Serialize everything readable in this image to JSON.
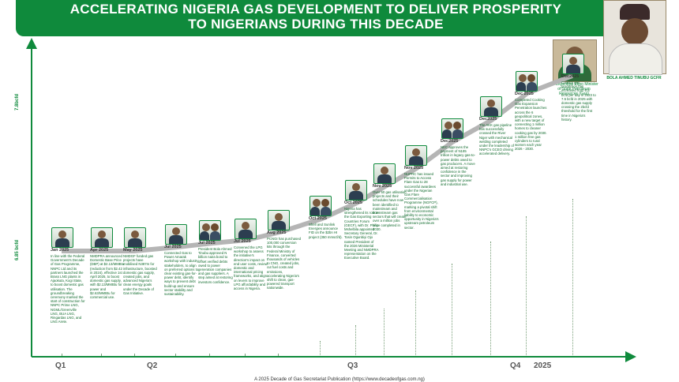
{
  "header": {
    "line1": "ACCELERATING NIGERIA GAS DEVELOPMENT TO DELIVER PROSPERITY",
    "line2": "TO NIGERIANS DURING THIS DECADE"
  },
  "credits": {
    "left": "Dr. Ekperikpe Ekpo Minister of State Petroleum Resources (Gas)",
    "right": "BOLA AHMED TINUBU GCFR"
  },
  "y_axis": {
    "top": "7.8bcfd",
    "bottom": "6.85 bcfd"
  },
  "milestones": [
    {
      "date": "Jan 2025",
      "text": "In line with the Federal Government's Decade of Gas Programme, NNPC Ltd and its partners launched the Brass LNG plants in Ajaokuta, Kogi State, to boost domestic gas utilisation. The groundbreaking ceremony marked the start of construction for NNPC Prime LNG, NGML/Greenville LNG, BUA LNG, Ringardas LNG, and LNG Arete."
    },
    {
      "date": "Apr 2025",
      "text": "NMDPRA announced Domestic Base Price (DBP) at $2.13/MMBtu (reduction from $2.42 in 2024), effective 1st April 2025, to boost domestic gas supply, with $2.13/MMBtu for power and $2.63/MMBtu for commercial use."
    },
    {
      "date": "May 2025",
      "text": "NMDGF funded gas projects have mobilised N387m for infrastructure, boosted domestic gas supply, created jobs, and advanced Nigeria's clean energy goals under the Decade of Gas Initiative."
    },
    {
      "date": "Jul 2025",
      "text": "Connected Gas to Power Amarak workshop with industry stakeholders, to align on preferred options to clear existing gas-for-power debt, identify ways to prevent debt build-up and ensure sector stability and sustainability."
    },
    {
      "date": "Jul 2025",
      "text": "President Bola Ahmed Tinubu approved N billion naira bond to offset verified debts owed to power generation companies and gas suppliers. A step aimed at restoring investors confidence."
    },
    {
      "date": "Jul 2025",
      "text": "Convened the LPG workshop to assess the initiative's direction's impact on end user costs, review domestic and international pricing frameworks, and align on levers to improve LPG affordability and access in Nigeria."
    },
    {
      "date": "Aug 2025",
      "text": "PCNGI has purchased 100,000 conversion kits through the Federal Ministry of Finance, converted thousands of vehicles to CNG, created jobs, cut fuel costs and emissions, accelerating Nigeria's shift to clean, gas-powered transport nationwide."
    },
    {
      "date": "Oct 2025",
      "text": "Shell and Sunlink Energies announce FID on the $2bn HI project (350 mmscf/d)."
    },
    {
      "date": "Oct 2025",
      "text": "Nigeria has strengthened its role in the Gas Exporting Countries Forum (GECF), with Dr. Philip Mshelbila appointed Secretary General, Dr. Tosin Ogunbiyi Ojo named President of the 2026 Ministerial Meeting and NMDPRA representation on the Executive Board."
    },
    {
      "date": "Nov 2025",
      "text": "Over 50 gas utilisation projects and their schedules have now been identified to mainstream and downstream gas sectors that will create over a million jobs once completed in 2030."
    },
    {
      "date": "Nov 2025",
      "text": "NUPRC has issued Permits to Access Flare Gas to 28 successful awardees under the Nigerian Gas Flare Commercialisation Programme (NGFCP), marking a pivotal shift from environmental liability to economic opportunity in Nigeria's upstream petroleum sector."
    },
    {
      "date": "Dec2025",
      "text": "NEC approves the payment of N185 trillion in legacy gas-to-power debts owed to gas producers. A move aimed at restoring confidence in the sector and improving gas supply for power and industrial use."
    },
    {
      "date": "Dec2025",
      "text": "The AKK gas pipeline has successfully crossed the River Niger with mechanical welding completed under the leadership of NNPC's GCEO driving accelerated delivery."
    },
    {
      "date": "Dec 2025",
      "text": "Completed Cooking Gas Expansion Penetration launches across the 6 geopolitical zones, with a new target of connecting 1 million homes to cleaner cooking gas by 2030. 1 million free gas cylinders to rural women each year 2026 - 2030."
    },
    {
      "date": "Dec2025",
      "text": "Country gas production has increased from 6.8 bcfd per day in 2023 to 7.5 bcfd in 2025 with domestic gas supply crossing the 2bcfd threshold for the first time in Nigeria's history."
    }
  ],
  "quarters": [
    "Q1",
    "Q2",
    "Q3",
    "Q4",
    "2025"
  ],
  "footer": "A 2025 Decade of Gas Secretariat Publication (https://www.decadeofgas.com.ng)",
  "colors": {
    "brand_green": "#0f8a3c",
    "curve_gray": "#b5b5b5"
  }
}
